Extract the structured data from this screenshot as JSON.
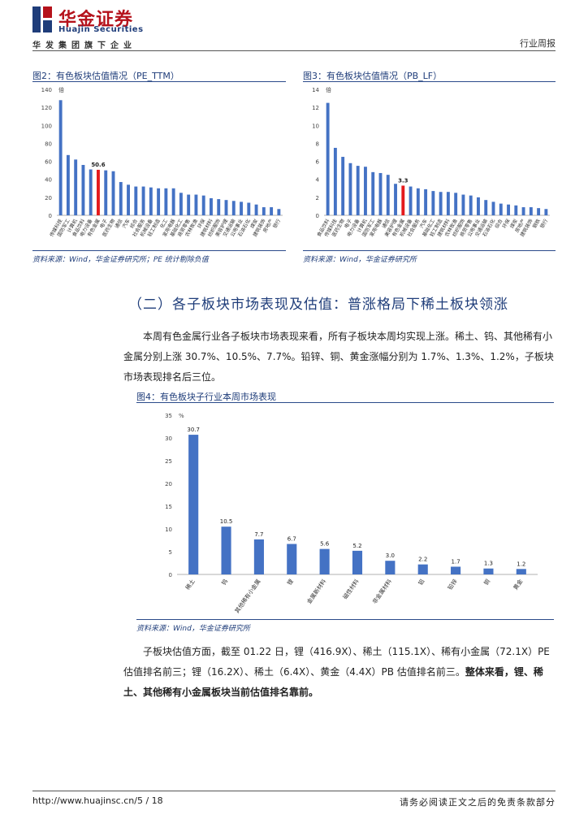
{
  "header": {
    "logo_cn": "华金证券",
    "logo_en": "Huajin Securities",
    "slogan": "华发集团旗下企业",
    "report_type": "行业周报"
  },
  "colors": {
    "bar": "#4472c4",
    "highlight": "#e41a1c",
    "title_blue": "#1f3d7a"
  },
  "fig2": {
    "title": "图2：有色板块估值情况（PE_TTM）",
    "source": "资料来源：Wind，华金证券研究所；PE 统计剔除负值",
    "chart_data": {
      "type": "bar",
      "y_unit": "倍",
      "ylim": [
        0,
        140
      ],
      "yticks": [
        0,
        20,
        40,
        60,
        80,
        100,
        120,
        140
      ],
      "highlight_index": 5,
      "highlight_label": "50.6",
      "categories": [
        "传媒科技",
        "国防军工",
        "计算机",
        "食品饮料",
        "电力设备",
        "有色金属",
        "电子",
        "医药生物",
        "通信",
        "汽车",
        "综合",
        "社会服务",
        "机械设备",
        "轻工制造",
        "化工",
        "家用电器",
        "基础化工",
        "商贸零售",
        "农林牧渔",
        "环保",
        "建筑材料",
        "纺织服饰",
        "美容护理",
        "交通运输",
        "公用事业",
        "石油石化",
        "煤炭",
        "建筑装饰",
        "房地产",
        "银行"
      ],
      "values": [
        128,
        67,
        62,
        56,
        51,
        50.6,
        50,
        49,
        37,
        34,
        32,
        32,
        31,
        30,
        30,
        30,
        25,
        23,
        23,
        22,
        19,
        18,
        17,
        16,
        15,
        14,
        12,
        9,
        9,
        7
      ]
    }
  },
  "fig3": {
    "title": "图3：有色板块估值情况（PB_LF）",
    "source": "资料来源：Wind，华金证券研究所",
    "chart_data": {
      "type": "bar",
      "y_unit": "倍",
      "ylim": [
        0,
        14
      ],
      "yticks": [
        0,
        2,
        4,
        6,
        8,
        10,
        12,
        14
      ],
      "highlight_index": 10,
      "highlight_label": "3.3",
      "categories": [
        "食品饮料",
        "传媒科技",
        "医药生物",
        "电子",
        "电力设备",
        "计算机",
        "国防军工",
        "家用电器",
        "通信",
        "美容护理",
        "有色金属",
        "机械设备",
        "社会服务",
        "汽车",
        "基础化工",
        "轻工制造",
        "建筑材料",
        "农林牧渔",
        "纺织服饰",
        "商贸零售",
        "公用事业",
        "交通运输",
        "石油石化",
        "综合",
        "环保",
        "煤炭",
        "房地产",
        "建筑装饰",
        "钢铁",
        "银行"
      ],
      "values": [
        12.5,
        7.5,
        6.5,
        5.8,
        5.5,
        5.4,
        4.8,
        4.7,
        4.5,
        3.5,
        3.3,
        3.2,
        3.0,
        2.9,
        2.7,
        2.6,
        2.6,
        2.5,
        2.3,
        2.2,
        2.0,
        1.7,
        1.5,
        1.3,
        1.2,
        1.1,
        0.9,
        0.9,
        0.8,
        0.7
      ]
    }
  },
  "section": {
    "title": "（二）各子板块市场表现及估值：普涨格局下稀土板块领涨",
    "para1": "本周有色金属行业各子板块市场表现来看，所有子板块本周均实现上涨。稀土、钨、其他稀有小金属分别上涨 30.7%、10.5%、7.7%。铅锌、铜、黄金涨幅分别为 1.7%、1.3%、1.2%，子板块市场表现排名后三位。"
  },
  "fig4": {
    "title": "图4：有色板块子行业本周市场表现",
    "source": "资料来源：Wind，华金证券研究所",
    "chart_data": {
      "type": "bar",
      "y_unit": "%",
      "ylim": [
        0,
        35
      ],
      "yticks": [
        0,
        5,
        10,
        15,
        20,
        25,
        30,
        35
      ],
      "categories": [
        "稀土",
        "钨",
        "其他稀有小金属",
        "锂",
        "金属新材料",
        "磁性材料",
        "非金属材料",
        "铝",
        "铅锌",
        "铜",
        "黄金"
      ],
      "values": [
        30.7,
        10.5,
        7.7,
        6.7,
        5.6,
        5.2,
        3.0,
        2.2,
        1.7,
        1.3,
        1.2
      ],
      "labels": [
        "30.7",
        "10.5",
        "7.7",
        "6.7",
        "5.6",
        "5.2",
        "3.0",
        "2.2",
        "1.7",
        "1.3",
        "1.2"
      ]
    }
  },
  "para2": {
    "text": "子板块估值方面，截至 01.22 日，锂（416.9X）、稀土（115.1X）、稀有小金属（72.1X）PE 估值排名前三；锂（16.2X）、稀土（6.4X）、黄金（4.4X）PB 估值排名前三。",
    "bold": "整体来看，锂、稀土、其他稀有小金属板块当前估值排名靠前。"
  },
  "footer": {
    "url": "http://www.huajinsc.cn/5 / 18",
    "disclaimer": "请务必阅读正文之后的免责条款部分"
  }
}
